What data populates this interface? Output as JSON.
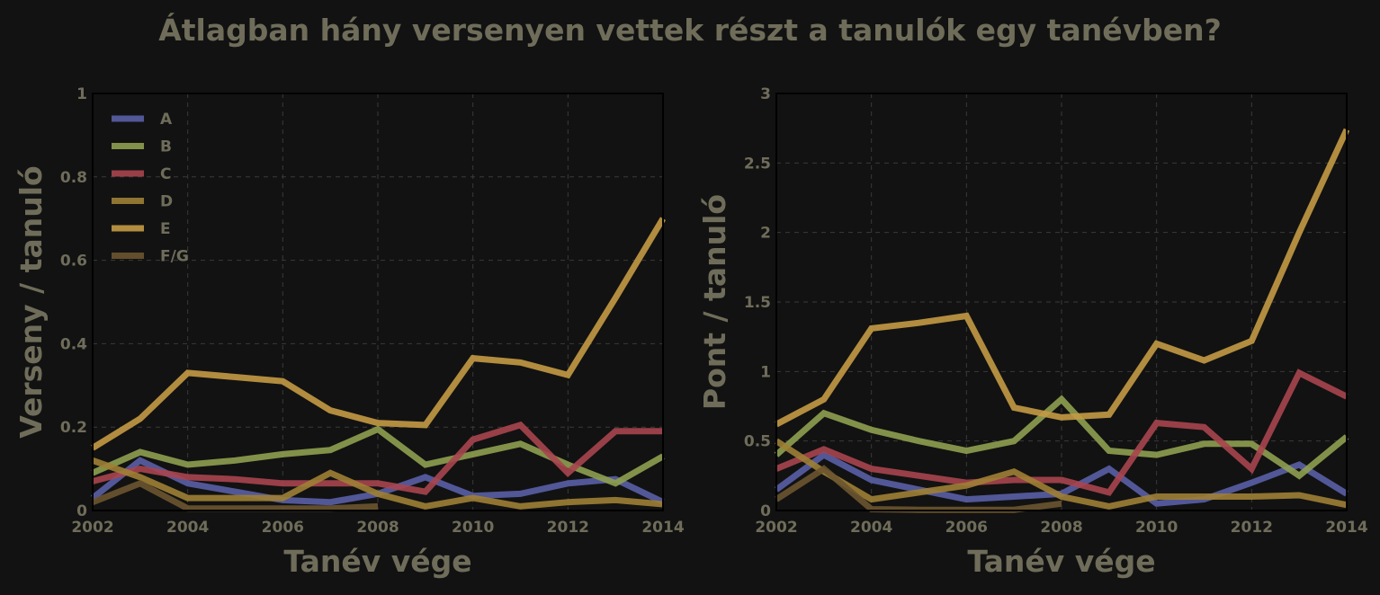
{
  "title": "Átlagban hány versenyen vettek részt a tanulók egy tanévben?",
  "chart_data": [
    {
      "type": "line",
      "xlabel": "Tanév vége",
      "ylabel": "Verseny / tanuló",
      "xlim": [
        2002,
        2014
      ],
      "ylim": [
        0,
        1
      ],
      "xticks": [
        "2002",
        "2004",
        "2006",
        "2008",
        "2010",
        "2012",
        "2014"
      ],
      "yticks": [
        "0",
        "0.2",
        "0.4",
        "0.6",
        "0.8",
        "1"
      ],
      "grid": true,
      "legend": "top-left",
      "x": [
        2002,
        2003,
        2004,
        2005,
        2006,
        2007,
        2008,
        2009,
        2010,
        2011,
        2012,
        2013,
        2014
      ],
      "series": [
        {
          "name": "A",
          "color": "#5a5fa6",
          "values": [
            0.03,
            0.12,
            0.065,
            0.045,
            0.025,
            0.02,
            0.04,
            0.08,
            0.035,
            0.04,
            0.065,
            0.075,
            0.02
          ]
        },
        {
          "name": "B",
          "color": "#8fa050",
          "values": [
            0.09,
            0.14,
            0.11,
            0.12,
            0.135,
            0.145,
            0.195,
            0.11,
            0.135,
            0.16,
            0.11,
            0.065,
            0.13
          ]
        },
        {
          "name": "C",
          "color": "#a8454f",
          "values": [
            0.07,
            0.1,
            0.08,
            0.075,
            0.065,
            0.065,
            0.065,
            0.045,
            0.17,
            0.205,
            0.09,
            0.19,
            0.19
          ]
        },
        {
          "name": "D",
          "color": "#9e7f35",
          "values": [
            0.12,
            0.08,
            0.03,
            0.03,
            0.03,
            0.09,
            0.04,
            0.01,
            0.03,
            0.01,
            0.02,
            0.025,
            0.015
          ]
        },
        {
          "name": "E",
          "color": "#c49a45",
          "values": [
            0.15,
            0.22,
            0.33,
            0.32,
            0.31,
            0.24,
            0.21,
            0.205,
            0.365,
            0.355,
            0.325,
            0.51,
            0.7
          ]
        },
        {
          "name": "F/G",
          "color": "#6b5530",
          "values": [
            0.02,
            0.065,
            0.005,
            0.005,
            0.005,
            0.005,
            0.01,
            null,
            null,
            null,
            null,
            null,
            null
          ]
        }
      ]
    },
    {
      "type": "line",
      "xlabel": "Tanév vége",
      "ylabel": "Pont / tanuló",
      "xlim": [
        2002,
        2014
      ],
      "ylim": [
        0,
        3
      ],
      "xticks": [
        "2002",
        "2004",
        "2006",
        "2008",
        "2010",
        "2012",
        "2014"
      ],
      "yticks": [
        "0",
        "0.5",
        "1",
        "1.5",
        "2",
        "2.5",
        "3"
      ],
      "grid": true,
      "x": [
        2002,
        2003,
        2004,
        2005,
        2006,
        2007,
        2008,
        2009,
        2010,
        2011,
        2012,
        2013,
        2014
      ],
      "series": [
        {
          "name": "A",
          "color": "#5a5fa6",
          "values": [
            0.15,
            0.4,
            0.22,
            0.15,
            0.08,
            0.1,
            0.12,
            0.3,
            0.05,
            0.08,
            0.2,
            0.33,
            0.12
          ]
        },
        {
          "name": "B",
          "color": "#8fa050",
          "values": [
            0.4,
            0.7,
            0.58,
            0.5,
            0.43,
            0.5,
            0.8,
            0.43,
            0.4,
            0.48,
            0.48,
            0.25,
            0.53
          ]
        },
        {
          "name": "C",
          "color": "#a8454f",
          "values": [
            0.3,
            0.44,
            0.3,
            0.25,
            0.2,
            0.22,
            0.22,
            0.13,
            0.63,
            0.6,
            0.3,
            0.99,
            0.82
          ]
        },
        {
          "name": "D",
          "color": "#9e7f35",
          "values": [
            0.5,
            0.28,
            0.08,
            0.13,
            0.18,
            0.28,
            0.1,
            0.03,
            0.1,
            0.1,
            0.1,
            0.11,
            0.04
          ]
        },
        {
          "name": "E",
          "color": "#c49a45",
          "values": [
            0.62,
            0.8,
            1.31,
            1.35,
            1.4,
            0.74,
            0.67,
            0.69,
            1.2,
            1.08,
            1.22,
            2.0,
            2.74
          ]
        },
        {
          "name": "F/G",
          "color": "#6b5530",
          "values": [
            0.08,
            0.3,
            0.01,
            0.005,
            0.005,
            0.005,
            0.05,
            null,
            null,
            null,
            null,
            null,
            null
          ]
        }
      ]
    }
  ]
}
